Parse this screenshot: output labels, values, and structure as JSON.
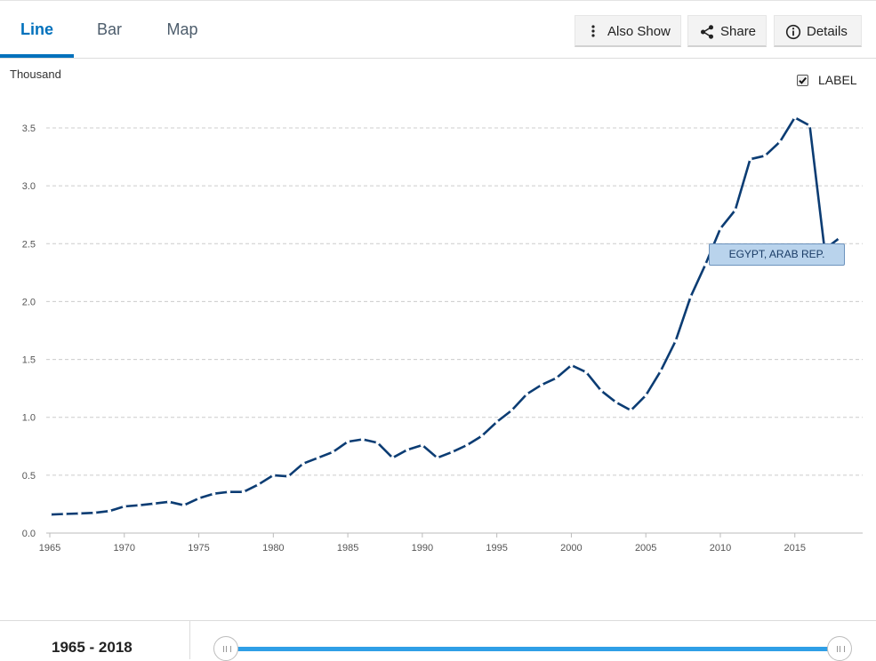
{
  "tabs": [
    {
      "label": "Line",
      "active": true
    },
    {
      "label": "Bar",
      "active": false
    },
    {
      "label": "Map",
      "active": false
    }
  ],
  "toolbar": {
    "also_show_label": "Also Show",
    "share_label": "Share",
    "details_label": "Details"
  },
  "label_toggle": {
    "text": "LABEL",
    "checked": true
  },
  "range": {
    "label": "1965 - 2018",
    "start": 1965,
    "end": 2018
  },
  "colors": {
    "line": "#0b3c73",
    "accent": "#0071bc",
    "slider": "#2f9fe6"
  },
  "chart_data": {
    "type": "line",
    "unit_label": "Thousand",
    "x": [
      1965,
      1966,
      1967,
      1968,
      1969,
      1970,
      1971,
      1972,
      1973,
      1974,
      1975,
      1976,
      1977,
      1978,
      1979,
      1980,
      1981,
      1982,
      1983,
      1984,
      1985,
      1986,
      1987,
      1988,
      1989,
      1990,
      1991,
      1992,
      1993,
      1994,
      1995,
      1996,
      1997,
      1998,
      1999,
      2000,
      2001,
      2002,
      2003,
      2004,
      2005,
      2006,
      2007,
      2008,
      2009,
      2010,
      2011,
      2012,
      2013,
      2014,
      2015,
      2016,
      2017,
      2018
    ],
    "series": [
      {
        "name": "EGYPT, ARAB REP.",
        "values": [
          0.16,
          0.165,
          0.17,
          0.175,
          0.19,
          0.23,
          0.24,
          0.255,
          0.27,
          0.24,
          0.3,
          0.34,
          0.355,
          0.355,
          0.42,
          0.5,
          0.49,
          0.6,
          0.65,
          0.7,
          0.79,
          0.81,
          0.78,
          0.65,
          0.72,
          0.76,
          0.65,
          0.7,
          0.76,
          0.84,
          0.96,
          1.06,
          1.2,
          1.28,
          1.34,
          1.45,
          1.39,
          1.23,
          1.13,
          1.06,
          1.19,
          1.4,
          1.66,
          2.04,
          2.32,
          2.63,
          2.79,
          3.23,
          3.26,
          3.38,
          3.59,
          3.52,
          2.45,
          2.55
        ]
      }
    ],
    "xticks": [
      1965,
      1970,
      1975,
      1980,
      1985,
      1990,
      1995,
      2000,
      2005,
      2010,
      2015
    ],
    "yticks": [
      "0.0",
      "0.5",
      "1.0",
      "1.5",
      "2.0",
      "2.5",
      "3.0",
      "3.5"
    ],
    "xlim": [
      1965,
      2018
    ],
    "ylim": [
      0,
      3.5
    ],
    "grid": true
  }
}
